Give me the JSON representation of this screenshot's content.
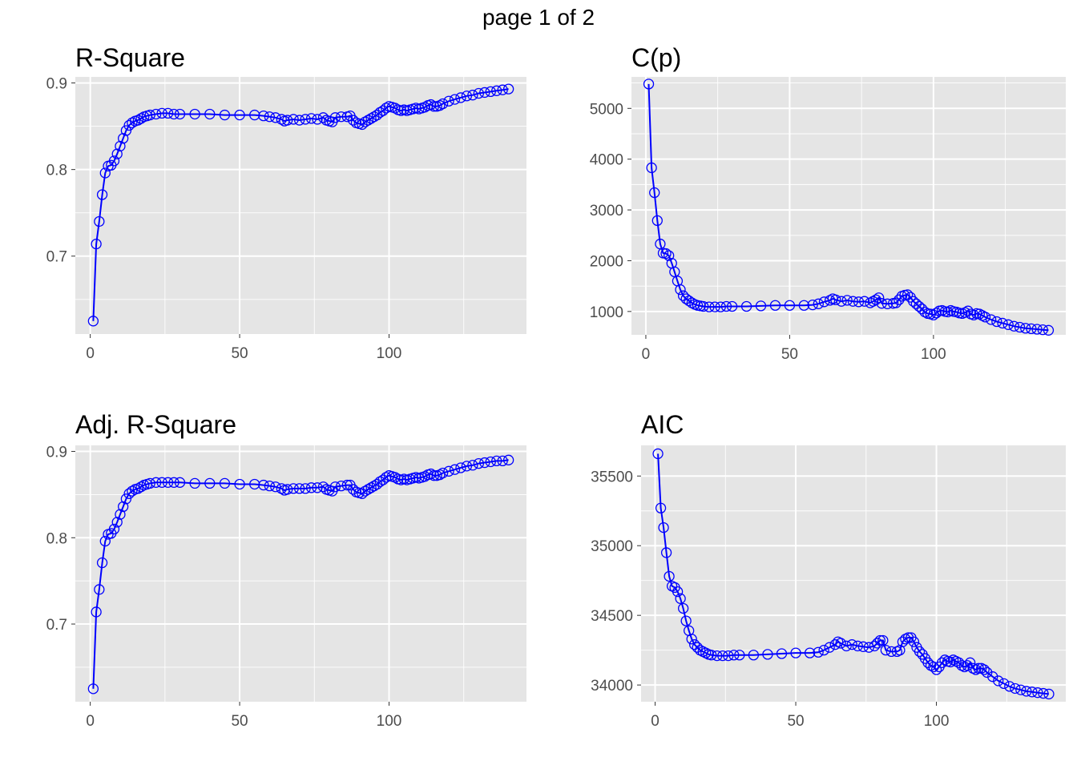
{
  "page": {
    "title": "page 1 of 2"
  },
  "colors": {
    "panel_bg": "#e5e5e5",
    "grid": "#ffffff",
    "series": "#0000ff",
    "tick_text": "#4d4d4d"
  },
  "chart_data": [
    {
      "type": "line",
      "id": "rsquare",
      "title": "R-Square",
      "xlabel": "",
      "ylabel": "",
      "xlim": [
        -5,
        146
      ],
      "ylim": [
        0.61,
        0.907
      ],
      "xticks": [
        0,
        50,
        100
      ],
      "xtick_labels": [
        "0",
        "50",
        "100"
      ],
      "yticks": [
        0.7,
        0.8,
        0.9
      ],
      "ytick_labels": [
        "0.7",
        "0.8",
        "0.9"
      ],
      "markers": "open-circle",
      "x": [
        1,
        2,
        3,
        4,
        5,
        6,
        7,
        8,
        9,
        10,
        11,
        12,
        13,
        14,
        15,
        16,
        17,
        18,
        19,
        20,
        22,
        24,
        26,
        28,
        30,
        35,
        40,
        45,
        50,
        55,
        58,
        60,
        62,
        64,
        65,
        66,
        68,
        70,
        72,
        74,
        76,
        78,
        79,
        80,
        81,
        82,
        84,
        86,
        87,
        88,
        89,
        90,
        91,
        92,
        93,
        94,
        95,
        96,
        97,
        98,
        99,
        100,
        101,
        102,
        103,
        104,
        105,
        106,
        107,
        108,
        109,
        110,
        111,
        112,
        113,
        114,
        115,
        116,
        117,
        118,
        120,
        122,
        124,
        126,
        128,
        130,
        132,
        134,
        136,
        138,
        140
      ],
      "y": [
        0.625,
        0.714,
        0.74,
        0.771,
        0.796,
        0.804,
        0.805,
        0.81,
        0.818,
        0.827,
        0.836,
        0.845,
        0.851,
        0.854,
        0.856,
        0.857,
        0.859,
        0.861,
        0.862,
        0.863,
        0.864,
        0.865,
        0.865,
        0.864,
        0.864,
        0.864,
        0.864,
        0.863,
        0.863,
        0.863,
        0.862,
        0.861,
        0.86,
        0.858,
        0.856,
        0.857,
        0.858,
        0.857,
        0.858,
        0.859,
        0.858,
        0.86,
        0.857,
        0.856,
        0.855,
        0.86,
        0.861,
        0.861,
        0.862,
        0.857,
        0.854,
        0.853,
        0.852,
        0.855,
        0.857,
        0.859,
        0.861,
        0.863,
        0.866,
        0.868,
        0.871,
        0.873,
        0.872,
        0.871,
        0.869,
        0.868,
        0.869,
        0.868,
        0.869,
        0.87,
        0.871,
        0.87,
        0.871,
        0.872,
        0.874,
        0.875,
        0.873,
        0.873,
        0.874,
        0.876,
        0.879,
        0.881,
        0.883,
        0.885,
        0.886,
        0.888,
        0.889,
        0.89,
        0.891,
        0.892,
        0.893
      ]
    },
    {
      "type": "line",
      "id": "cp",
      "title": "C(p)",
      "xlabel": "",
      "ylabel": "",
      "xlim": [
        -5,
        146
      ],
      "ylim": [
        540,
        5620
      ],
      "xticks": [
        0,
        50,
        100
      ],
      "xtick_labels": [
        "0",
        "50",
        "100"
      ],
      "yticks": [
        1000,
        2000,
        3000,
        4000,
        5000
      ],
      "ytick_labels": [
        "1000",
        "2000",
        "3000",
        "4000",
        "5000"
      ],
      "markers": "open-circle",
      "x": [
        1,
        2,
        3,
        4,
        5,
        6,
        7,
        8,
        9,
        10,
        11,
        12,
        13,
        14,
        15,
        16,
        17,
        18,
        19,
        20,
        22,
        24,
        26,
        28,
        30,
        35,
        40,
        45,
        50,
        55,
        58,
        60,
        62,
        64,
        65,
        66,
        68,
        70,
        72,
        74,
        76,
        78,
        79,
        80,
        81,
        82,
        84,
        86,
        87,
        88,
        89,
        90,
        91,
        92,
        93,
        94,
        95,
        96,
        97,
        98,
        99,
        100,
        101,
        102,
        103,
        104,
        105,
        106,
        107,
        108,
        109,
        110,
        111,
        112,
        113,
        114,
        115,
        116,
        117,
        118,
        120,
        122,
        124,
        126,
        128,
        130,
        132,
        134,
        136,
        138,
        140
      ],
      "y": [
        5480,
        3830,
        3340,
        2790,
        2330,
        2150,
        2140,
        2100,
        1950,
        1780,
        1600,
        1430,
        1310,
        1250,
        1210,
        1170,
        1140,
        1120,
        1110,
        1100,
        1090,
        1090,
        1090,
        1100,
        1100,
        1100,
        1110,
        1120,
        1120,
        1120,
        1130,
        1150,
        1190,
        1220,
        1250,
        1230,
        1200,
        1220,
        1200,
        1190,
        1200,
        1170,
        1200,
        1230,
        1270,
        1160,
        1150,
        1160,
        1170,
        1230,
        1300,
        1320,
        1330,
        1280,
        1200,
        1150,
        1100,
        1050,
        990,
        960,
        950,
        930,
        970,
        1010,
        1020,
        1000,
        990,
        1020,
        1000,
        990,
        970,
        960,
        980,
        1010,
        950,
        930,
        960,
        950,
        920,
        890,
        840,
        800,
        770,
        740,
        710,
        690,
        670,
        660,
        650,
        640,
        630
      ]
    },
    {
      "type": "line",
      "id": "adj-rsquare",
      "title": "Adj. R-Square",
      "xlabel": "",
      "ylabel": "",
      "xlim": [
        -5,
        146
      ],
      "ylim": [
        0.61,
        0.907
      ],
      "xticks": [
        0,
        50,
        100
      ],
      "xtick_labels": [
        "0",
        "50",
        "100"
      ],
      "yticks": [
        0.7,
        0.8,
        0.9
      ],
      "ytick_labels": [
        "0.7",
        "0.8",
        "0.9"
      ],
      "markers": "open-circle",
      "x": [
        1,
        2,
        3,
        4,
        5,
        6,
        7,
        8,
        9,
        10,
        11,
        12,
        13,
        14,
        15,
        16,
        17,
        18,
        19,
        20,
        22,
        24,
        26,
        28,
        30,
        35,
        40,
        45,
        50,
        55,
        58,
        60,
        62,
        64,
        65,
        66,
        68,
        70,
        72,
        74,
        76,
        78,
        79,
        80,
        81,
        82,
        84,
        86,
        87,
        88,
        89,
        90,
        91,
        92,
        93,
        94,
        95,
        96,
        97,
        98,
        99,
        100,
        101,
        102,
        103,
        104,
        105,
        106,
        107,
        108,
        109,
        110,
        111,
        112,
        113,
        114,
        115,
        116,
        117,
        118,
        120,
        122,
        124,
        126,
        128,
        130,
        132,
        134,
        136,
        138,
        140
      ],
      "y": [
        0.625,
        0.714,
        0.74,
        0.771,
        0.796,
        0.804,
        0.805,
        0.81,
        0.818,
        0.827,
        0.836,
        0.845,
        0.851,
        0.854,
        0.856,
        0.857,
        0.859,
        0.861,
        0.862,
        0.863,
        0.864,
        0.864,
        0.864,
        0.864,
        0.864,
        0.863,
        0.863,
        0.863,
        0.862,
        0.862,
        0.861,
        0.86,
        0.859,
        0.857,
        0.855,
        0.856,
        0.857,
        0.857,
        0.857,
        0.858,
        0.858,
        0.859,
        0.856,
        0.855,
        0.854,
        0.859,
        0.86,
        0.861,
        0.861,
        0.856,
        0.853,
        0.852,
        0.851,
        0.854,
        0.856,
        0.858,
        0.86,
        0.862,
        0.865,
        0.867,
        0.87,
        0.872,
        0.871,
        0.87,
        0.868,
        0.867,
        0.868,
        0.867,
        0.868,
        0.869,
        0.87,
        0.869,
        0.87,
        0.871,
        0.873,
        0.874,
        0.872,
        0.872,
        0.873,
        0.875,
        0.877,
        0.879,
        0.881,
        0.883,
        0.884,
        0.886,
        0.887,
        0.888,
        0.889,
        0.889,
        0.89
      ]
    },
    {
      "type": "line",
      "id": "aic",
      "title": "AIC",
      "xlabel": "",
      "ylabel": "",
      "xlim": [
        -5,
        146
      ],
      "ylim": [
        33880,
        35720
      ],
      "xticks": [
        0,
        50,
        100
      ],
      "xtick_labels": [
        "0",
        "50",
        "100"
      ],
      "yticks": [
        34000,
        34500,
        35000,
        35500
      ],
      "ytick_labels": [
        "34000",
        "34500",
        "35000",
        "35500"
      ],
      "markers": "open-circle",
      "x": [
        1,
        2,
        3,
        4,
        5,
        6,
        7,
        8,
        9,
        10,
        11,
        12,
        13,
        14,
        15,
        16,
        17,
        18,
        19,
        20,
        22,
        24,
        26,
        28,
        30,
        35,
        40,
        45,
        50,
        55,
        58,
        60,
        62,
        64,
        65,
        66,
        68,
        70,
        72,
        74,
        76,
        78,
        79,
        80,
        81,
        82,
        84,
        86,
        87,
        88,
        89,
        90,
        91,
        92,
        93,
        94,
        95,
        96,
        97,
        98,
        99,
        100,
        101,
        102,
        103,
        104,
        105,
        106,
        107,
        108,
        109,
        110,
        111,
        112,
        113,
        114,
        115,
        116,
        117,
        118,
        120,
        122,
        124,
        126,
        128,
        130,
        132,
        134,
        136,
        138,
        140
      ],
      "y": [
        35660,
        35270,
        35130,
        34950,
        34780,
        34710,
        34700,
        34670,
        34620,
        34550,
        34460,
        34390,
        34330,
        34290,
        34270,
        34250,
        34240,
        34230,
        34220,
        34215,
        34210,
        34210,
        34210,
        34215,
        34215,
        34215,
        34220,
        34225,
        34230,
        34230,
        34235,
        34250,
        34270,
        34290,
        34310,
        34300,
        34280,
        34290,
        34280,
        34275,
        34270,
        34280,
        34300,
        34320,
        34320,
        34250,
        34240,
        34240,
        34250,
        34310,
        34330,
        34340,
        34340,
        34310,
        34270,
        34240,
        34220,
        34190,
        34160,
        34140,
        34130,
        34110,
        34130,
        34160,
        34180,
        34170,
        34165,
        34180,
        34170,
        34160,
        34140,
        34130,
        34140,
        34160,
        34120,
        34110,
        34120,
        34120,
        34110,
        34090,
        34060,
        34030,
        34010,
        33990,
        33975,
        33965,
        33955,
        33950,
        33945,
        33940,
        33935
      ]
    }
  ]
}
